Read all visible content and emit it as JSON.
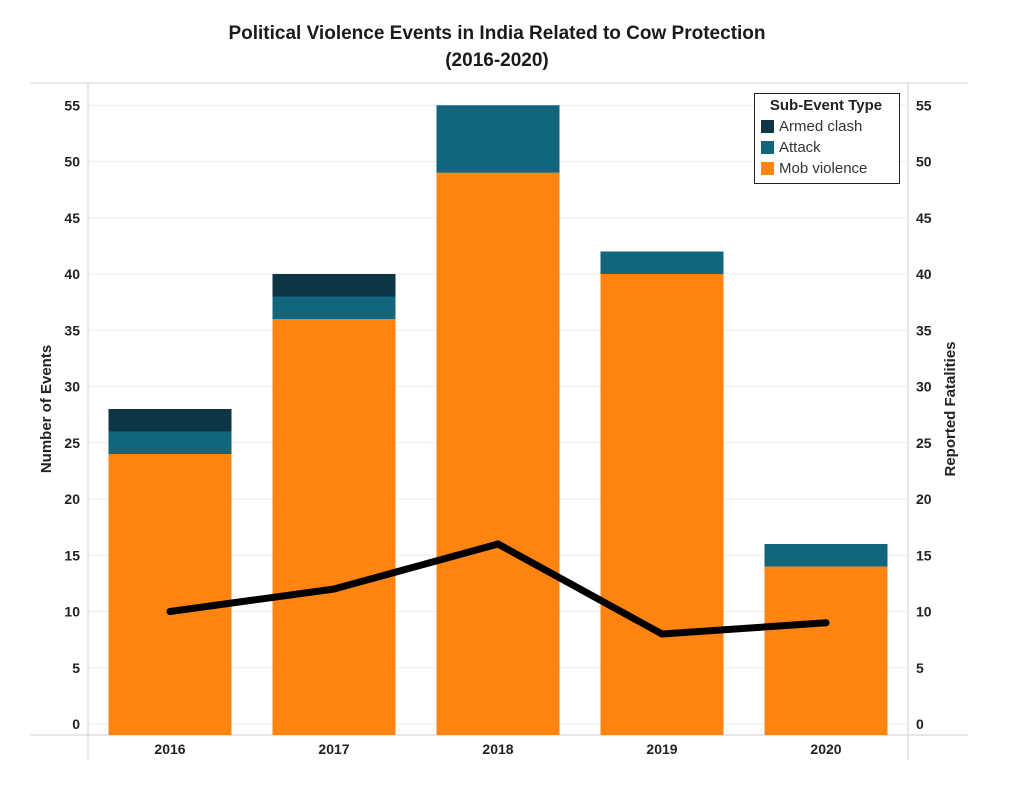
{
  "chart_data": {
    "type": "bar",
    "stacked": true,
    "title": "Political Violence Events in India Related to Cow Protection",
    "subtitle": "(2016-2020)",
    "categories": [
      "2016",
      "2017",
      "2018",
      "2019",
      "2020"
    ],
    "series": [
      {
        "name": "Mob violence",
        "color": "#ff8412",
        "values": [
          24,
          36,
          49,
          40,
          14
        ]
      },
      {
        "name": "Attack",
        "color": "#11667e",
        "values": [
          2,
          2,
          6,
          2,
          2
        ]
      },
      {
        "name": "Armed clash",
        "color": "#0d3544",
        "values": [
          2,
          2,
          0,
          0,
          0
        ]
      }
    ],
    "line_series": {
      "axis": "right",
      "color": "#000000",
      "values": [
        10,
        12,
        16,
        8,
        9
      ]
    },
    "ylabel": "Number of Events",
    "y2label": "Reported Fatalities",
    "ylim": [
      0,
      57
    ],
    "y2lim": [
      0,
      57
    ],
    "yticks": [
      0,
      5,
      10,
      15,
      20,
      25,
      30,
      35,
      40,
      45,
      50,
      55
    ],
    "y2ticks": [
      0,
      5,
      10,
      15,
      20,
      25,
      30,
      35,
      40,
      45,
      50,
      55
    ],
    "legend": {
      "title": "Sub-Event Type",
      "placement": "top-right",
      "items": [
        {
          "label": "Armed clash",
          "color": "#0d3544"
        },
        {
          "label": "Attack",
          "color": "#11667e"
        },
        {
          "label": "Mob violence",
          "color": "#ff8412"
        }
      ]
    },
    "grid": true
  }
}
